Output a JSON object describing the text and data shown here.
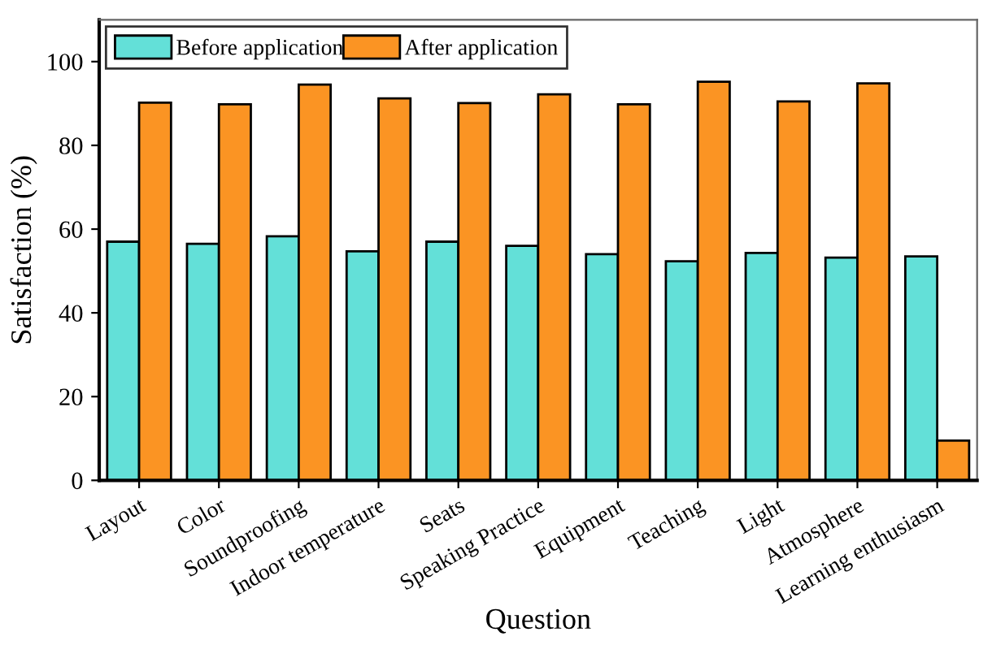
{
  "chart_data": {
    "type": "bar",
    "xlabel": "Question",
    "ylabel": "Satisfaction (%)",
    "categories": [
      "Layout",
      "Color",
      "Soundproofing",
      "Indoor temperature",
      "Seats",
      "Speaking Practice",
      "Equipment",
      "Teaching",
      "Light",
      "Atmosphere",
      "Learning enthusiasm"
    ],
    "series": [
      {
        "name": "Before application",
        "color": "#63e0d8",
        "values": [
          57,
          56.5,
          58.3,
          54.7,
          57,
          56,
          54,
          52.3,
          54.3,
          53.2,
          53.5
        ]
      },
      {
        "name": "After application",
        "color": "#fb9423",
        "values": [
          90.2,
          89.8,
          94.5,
          91.2,
          90.1,
          92.2,
          89.8,
          95.2,
          90.5,
          94.8,
          9.5
        ]
      }
    ],
    "ylim": [
      0,
      110
    ],
    "yticks": [
      0,
      20,
      40,
      60,
      80,
      100
    ],
    "grid": false,
    "legend": "top left"
  }
}
